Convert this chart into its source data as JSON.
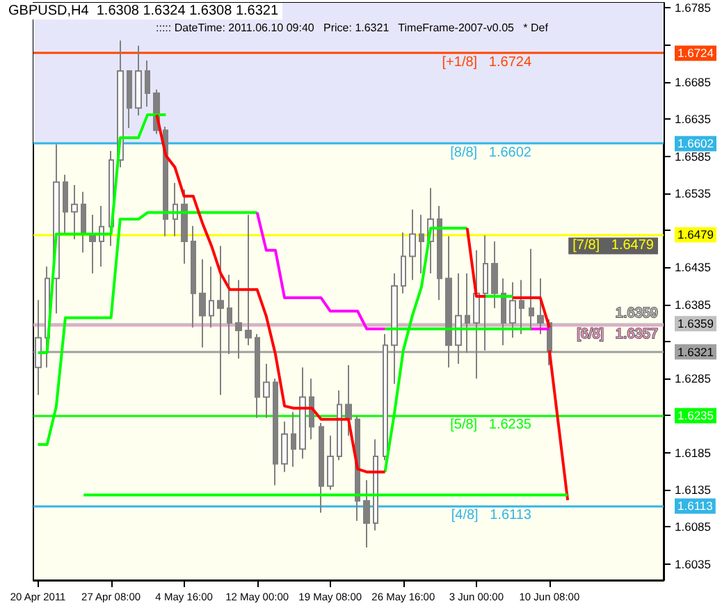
{
  "chart_data": {
    "type": "candlestick",
    "title": "GBPUSD,H4  1.6308 1.6324 1.6308 1.6321",
    "color": "#808080",
    "annotations": [
      "::::: DateTime: 2011.06.10 09:40",
      "Price: 1.6321",
      "TimeFrame-2007-v0.05",
      "* Def"
    ],
    "categories": [
      "20 Apr 2011",
      null,
      null,
      null,
      null,
      null,
      null,
      null,
      "27 Apr 08:00",
      null,
      null,
      null,
      null,
      null,
      null,
      null,
      "4 May 16:00",
      null,
      null,
      null,
      null,
      null,
      null,
      null,
      "12 May 00:00",
      null,
      null,
      null,
      null,
      null,
      null,
      null,
      "19 May 08:00",
      null,
      null,
      null,
      null,
      null,
      null,
      null,
      "26 May 16:00",
      null,
      null,
      null,
      null,
      null,
      null,
      null,
      "3 Jun 00:00",
      null,
      null,
      null,
      null,
      null,
      null,
      null,
      "10 Jun 08:00",
      null,
      null,
      null,
      null,
      null,
      null,
      null,
      null,
      null,
      null,
      null,
      null
    ],
    "ohlc": [
      [
        1.63,
        1.6391,
        1.6263,
        1.634
      ],
      [
        1.634,
        1.6436,
        1.63,
        1.642
      ],
      [
        1.642,
        1.6601,
        1.6373,
        1.655
      ],
      [
        1.655,
        1.656,
        1.648,
        1.651
      ],
      [
        1.651,
        1.6546,
        1.6473,
        1.652
      ],
      [
        1.652,
        1.6537,
        1.6455,
        1.648
      ],
      [
        1.648,
        1.6506,
        1.6427,
        1.647
      ],
      [
        1.647,
        1.6518,
        1.6436,
        1.649
      ],
      [
        1.649,
        1.6592,
        1.6464,
        1.658
      ],
      [
        1.658,
        1.6741,
        1.657,
        1.67
      ],
      [
        1.67,
        1.6701,
        1.6623,
        1.665
      ],
      [
        1.665,
        1.6734,
        1.664,
        1.67
      ],
      [
        1.67,
        1.6714,
        1.6652,
        1.667
      ],
      [
        1.667,
        1.6675,
        1.6615,
        1.662
      ],
      [
        1.662,
        1.6625,
        1.6477,
        1.65
      ],
      [
        1.65,
        1.6549,
        1.6477,
        1.652
      ],
      [
        1.652,
        1.654,
        1.644,
        1.647
      ],
      [
        1.647,
        1.6491,
        1.6354,
        1.64
      ],
      [
        1.64,
        1.6446,
        1.6327,
        1.637
      ],
      [
        1.637,
        1.6436,
        1.6354,
        1.639
      ],
      [
        1.639,
        1.6464,
        1.6263,
        1.638
      ],
      [
        1.638,
        1.6425,
        1.6318,
        1.636
      ],
      [
        1.636,
        1.6418,
        1.6312,
        1.635
      ],
      [
        1.635,
        1.6506,
        1.633,
        1.634
      ],
      [
        1.634,
        1.6345,
        1.6232,
        1.626
      ],
      [
        1.626,
        1.6305,
        1.6232,
        1.628
      ],
      [
        1.628,
        1.6285,
        1.6141,
        1.617
      ],
      [
        1.617,
        1.6227,
        1.6159,
        1.621
      ],
      [
        1.621,
        1.624,
        1.6166,
        1.619
      ],
      [
        1.619,
        1.63,
        1.6177,
        1.626
      ],
      [
        1.626,
        1.6285,
        1.6203,
        1.622
      ],
      [
        1.622,
        1.6225,
        1.6104,
        1.614
      ],
      [
        1.614,
        1.6208,
        1.6135,
        1.618
      ],
      [
        1.618,
        1.6269,
        1.6175,
        1.625
      ],
      [
        1.625,
        1.6303,
        1.6208,
        1.623
      ],
      [
        1.623,
        1.6235,
        1.6093,
        1.612
      ],
      [
        1.612,
        1.6148,
        1.6057,
        1.609
      ],
      [
        1.609,
        1.6203,
        1.608,
        1.618
      ],
      [
        1.618,
        1.6345,
        1.6175,
        1.633
      ],
      [
        1.633,
        1.6427,
        1.6278,
        1.641
      ],
      [
        1.641,
        1.6482,
        1.64,
        1.645
      ],
      [
        1.645,
        1.6513,
        1.6418,
        1.648
      ],
      [
        1.648,
        1.6506,
        1.6427,
        1.647
      ],
      [
        1.647,
        1.6542,
        1.6427,
        1.65
      ],
      [
        1.65,
        1.6518,
        1.6391,
        1.642
      ],
      [
        1.642,
        1.6477,
        1.63,
        1.633
      ],
      [
        1.633,
        1.6427,
        1.6305,
        1.637
      ],
      [
        1.637,
        1.6427,
        1.632,
        1.636
      ],
      [
        1.636,
        1.6458,
        1.6285,
        1.64
      ],
      [
        1.64,
        1.6478,
        1.6323,
        1.644
      ],
      [
        1.644,
        1.647,
        1.638,
        1.64
      ],
      [
        1.64,
        1.642,
        1.633,
        1.636
      ],
      [
        1.636,
        1.6415,
        1.634,
        1.639
      ],
      [
        1.639,
        1.6418,
        1.6345,
        1.638
      ],
      [
        1.638,
        1.646,
        1.635,
        1.637
      ],
      [
        1.637,
        1.642,
        1.6345,
        1.636
      ],
      [
        1.636,
        1.6365,
        1.6303,
        1.6321
      ],
      null,
      null,
      null,
      null,
      null,
      null,
      null,
      null,
      null,
      null,
      null,
      null
    ],
    "series": [
      {
        "type": "line",
        "color": "#00ff00",
        "values": [
          1.6196,
          1.6196,
          1.6247,
          1.6367,
          1.6367,
          1.6367,
          1.6367,
          1.6367,
          1.6367,
          1.65,
          1.65,
          1.65,
          1.6509,
          1.6509,
          1.6509,
          1.6509,
          1.6509,
          1.6509,
          1.6509,
          1.6509,
          1.6509,
          1.6509,
          1.6509,
          1.6509,
          1.6509,
          null,
          null,
          null,
          null,
          null,
          null,
          null,
          null,
          null,
          null,
          null,
          null,
          null,
          1.6352,
          1.6352,
          1.6352,
          1.6352,
          1.6352,
          1.6352,
          1.6352,
          1.6352,
          1.6352,
          1.6352,
          1.6352,
          1.6352,
          1.6352,
          1.6352,
          1.6352,
          1.6352,
          1.6352,
          null,
          null,
          null,
          null,
          null,
          null,
          null,
          null,
          null,
          null,
          null,
          null,
          null,
          null
        ]
      },
      {
        "type": "line",
        "color": "#ff00ff",
        "values": [
          null,
          null,
          null,
          null,
          null,
          null,
          null,
          null,
          null,
          null,
          null,
          null,
          null,
          null,
          null,
          null,
          null,
          null,
          null,
          null,
          null,
          null,
          null,
          null,
          1.6509,
          1.6458,
          1.6458,
          1.6394,
          1.6394,
          1.6394,
          1.6394,
          1.6394,
          1.6376,
          1.6376,
          1.6376,
          1.6376,
          1.6352,
          1.6352,
          1.6352,
          null,
          null,
          null,
          null,
          null,
          null,
          null,
          null,
          null,
          null,
          null,
          null,
          null,
          null,
          null,
          null,
          null,
          null,
          null,
          null,
          null,
          null,
          null,
          null,
          null,
          null,
          null,
          null,
          null,
          null
        ]
      },
      {
        "type": "line",
        "color": "#ff00ff",
        "values": [
          null,
          null,
          null,
          null,
          null,
          null,
          null,
          null,
          null,
          null,
          null,
          null,
          null,
          null,
          null,
          null,
          null,
          null,
          null,
          null,
          null,
          null,
          null,
          null,
          null,
          null,
          null,
          null,
          null,
          null,
          null,
          null,
          null,
          null,
          null,
          null,
          null,
          null,
          null,
          null,
          null,
          null,
          null,
          null,
          null,
          null,
          null,
          null,
          null,
          null,
          null,
          null,
          null,
          null,
          1.6352,
          1.6352,
          1.6352,
          null,
          null,
          null,
          null,
          null,
          null,
          null,
          null,
          null,
          null,
          null,
          null
        ]
      },
      {
        "type": "line",
        "color": "#00ff00",
        "values": [
          1.632,
          1.632,
          1.648,
          1.648,
          1.648,
          1.648,
          1.648,
          1.648,
          1.648,
          1.661,
          1.661,
          1.661,
          1.6641,
          1.6641,
          1.6641,
          null,
          null,
          null,
          null,
          null,
          null,
          null,
          null,
          null,
          null,
          null,
          null,
          null,
          null,
          null,
          null,
          null,
          null,
          null,
          null,
          null,
          null,
          null,
          1.6159,
          1.6236,
          1.6323,
          1.637,
          1.6409,
          1.6488,
          1.6488,
          1.6488,
          1.6488,
          1.6488,
          null,
          1.6396,
          1.6396,
          1.6396,
          1.6396,
          null,
          null,
          null,
          null,
          null,
          null,
          null,
          null,
          null,
          null,
          null,
          null,
          null,
          null,
          null,
          null
        ]
      },
      {
        "type": "line",
        "color": "#ff0000",
        "values": [
          null,
          null,
          null,
          null,
          null,
          null,
          null,
          null,
          null,
          null,
          null,
          null,
          null,
          1.6641,
          1.6586,
          1.657,
          1.6531,
          1.6531,
          1.6495,
          1.6464,
          1.6427,
          1.6405,
          1.6405,
          1.6405,
          1.6405,
          1.6369,
          1.6318,
          1.6248,
          1.6245,
          1.6245,
          1.6245,
          1.623,
          1.623,
          1.623,
          1.623,
          1.6163,
          1.6159,
          1.6159,
          1.6159,
          null,
          null,
          null,
          null,
          null,
          null,
          null,
          null,
          1.6488,
          1.6396,
          1.6396,
          null,
          null,
          1.6394,
          1.6394,
          1.6394,
          1.6394,
          1.6354,
          null,
          null,
          null,
          null,
          null,
          null,
          null,
          null,
          null,
          null,
          null,
          null
        ]
      },
      {
        "type": "line",
        "color": "#ff0000",
        "values": [
          null,
          null,
          null,
          null,
          null,
          null,
          null,
          null,
          null,
          null,
          null,
          null,
          null,
          null,
          null,
          null,
          null,
          null,
          null,
          null,
          null,
          null,
          null,
          null,
          null,
          null,
          null,
          null,
          null,
          null,
          null,
          null,
          null,
          null,
          null,
          null,
          null,
          null,
          null,
          null,
          null,
          null,
          null,
          null,
          null,
          null,
          null,
          null,
          null,
          null,
          null,
          null,
          null,
          null,
          null,
          null,
          1.6323,
          1.6222,
          1.6121,
          null,
          null,
          null,
          null,
          null,
          null,
          null,
          null,
          null,
          null
        ]
      },
      {
        "type": "line",
        "color": "#00ff00",
        "values": [
          null,
          null,
          null,
          null,
          null,
          1.6128,
          1.6128,
          1.6128,
          1.6128,
          1.6128,
          1.6128,
          1.6128,
          1.6128,
          1.6128,
          1.6128,
          1.6128,
          1.6128,
          1.6128,
          1.6128,
          1.6128,
          1.6128,
          1.6128,
          1.6128,
          1.6128,
          1.6128,
          1.6128,
          1.6128,
          1.6128,
          1.6128,
          1.6128,
          1.6128,
          1.6128,
          1.6128,
          1.6128,
          1.6128,
          1.6128,
          1.6128,
          1.6128,
          1.6128,
          1.6128,
          1.6128,
          1.6128,
          1.6128,
          1.6128,
          1.6128,
          1.6128,
          1.6128,
          1.6128,
          1.6128,
          1.6128,
          1.6128,
          1.6128,
          1.6128,
          1.6128,
          1.6128,
          1.6128,
          1.6128,
          1.6128,
          1.6128,
          null,
          null,
          null,
          null,
          null,
          null,
          null,
          null,
          null,
          null
        ]
      }
    ],
    "ylim": [
      1.6013,
      1.6792
    ],
    "yticks": [
      1.6035,
      1.6085,
      1.6135,
      1.6185,
      {
        "value": 1.6235,
        "label": null
      },
      1.6285,
      {
        "value": 1.6335,
        "label": null
      },
      1.6385,
      1.6435,
      {
        "value": 1.6485,
        "label": null
      },
      1.6535,
      1.6585,
      1.6635,
      1.6685,
      {
        "value": 1.6735,
        "label": null
      },
      1.6785
    ],
    "y2lim": [
      1.6013,
      1.6792
    ],
    "y2ticks": [
      1.6724,
      1.6602,
      1.6479,
      1.6359,
      1.6321,
      1.6235,
      1.6113
    ],
    "ref_lines": [
      {
        "axis": "y",
        "value": 1.6724,
        "label": "[+1/8]   1.6724",
        "color": "#ff4500"
      },
      {
        "axis": "y",
        "value": 1.6602,
        "label": "[8/8]   1.6602",
        "color": "#33b5e5"
      },
      {
        "axis": "y",
        "value": 1.6479,
        "label": "[7/8]   1.6479",
        "color": "#ffff00"
      },
      {
        "axis": "y",
        "value": 1.6357,
        "label": "[6/8]   1.6357",
        "color": "#ff99cc"
      },
      {
        "axis": "y",
        "value": 1.6359,
        "label": "1.6359",
        "color": "#c0c0c0"
      },
      {
        "axis": "y",
        "value": 1.6321,
        "label": null,
        "color": "#a0a0a0"
      },
      {
        "axis": "y",
        "value": 1.6235,
        "label": "[5/8]   1.6235",
        "color": "#00ff00"
      },
      {
        "axis": "y",
        "value": 1.6113,
        "label": "[4/8]   1.6113",
        "color": "#33b5e5"
      }
    ],
    "bands": [
      {
        "axis": "y",
        "from": 1.6602,
        "to": 1.6792,
        "color": "#e6e6fa"
      }
    ]
  }
}
